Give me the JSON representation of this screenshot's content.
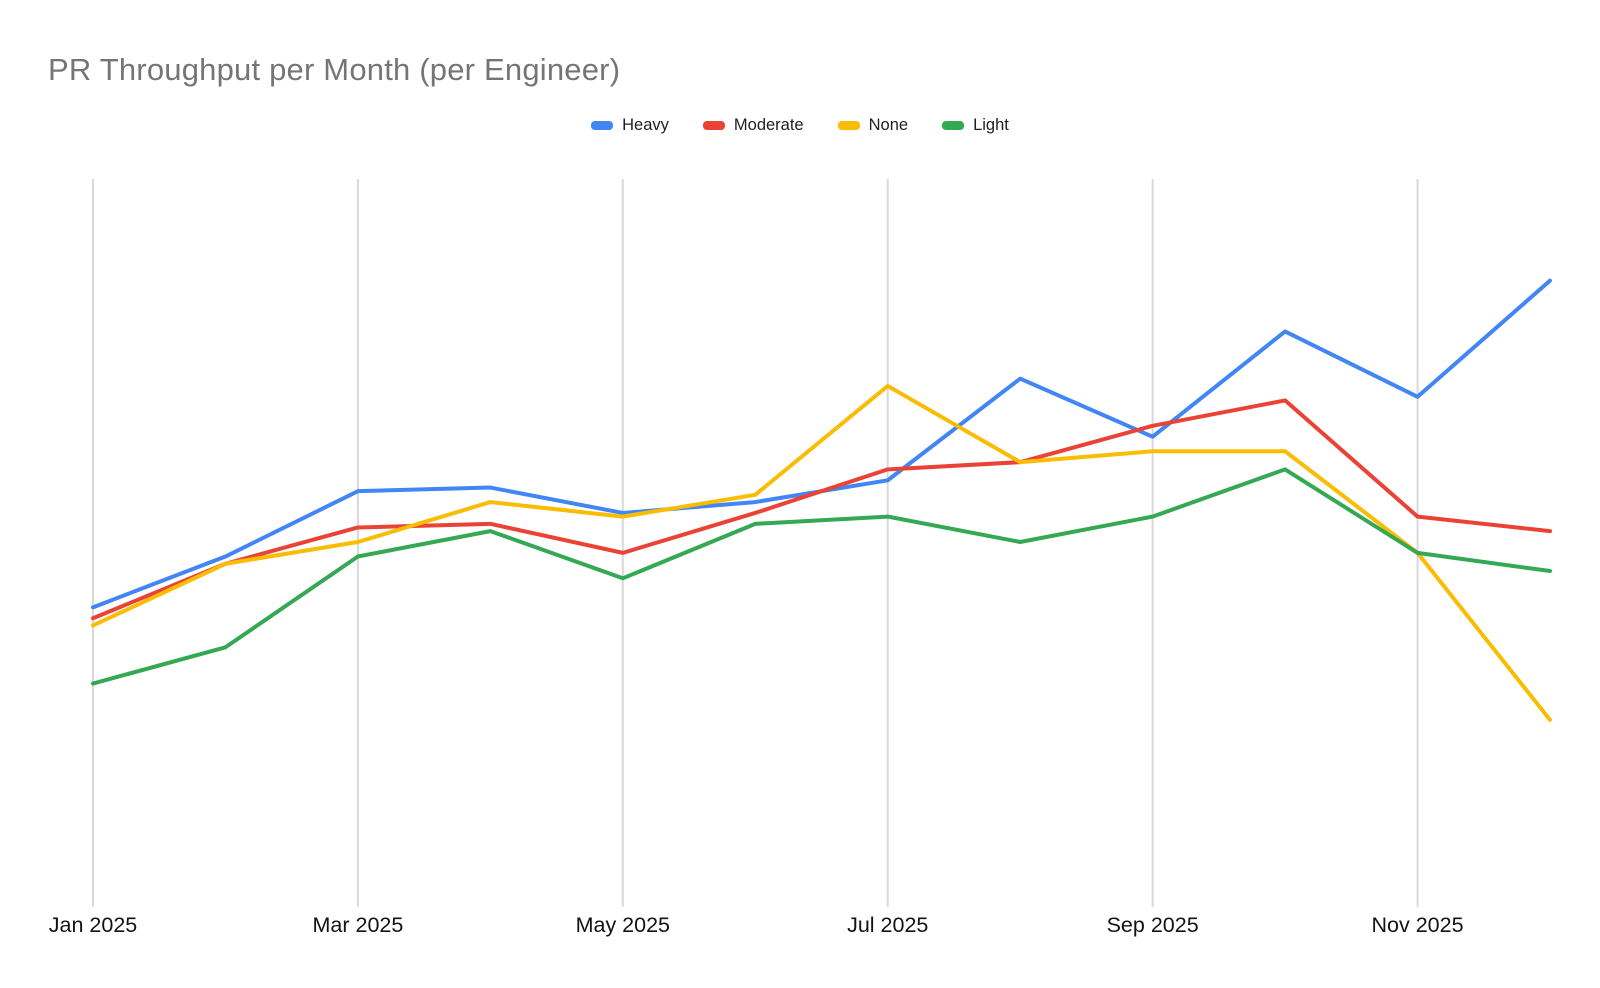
{
  "title": "PR Throughput per Month (per Engineer)",
  "legend": {
    "position": "top-center",
    "items": [
      {
        "label": "Heavy",
        "color": "#4285F4"
      },
      {
        "label": "Moderate",
        "color": "#EA4335"
      },
      {
        "label": "None",
        "color": "#FBBC04"
      },
      {
        "label": "Light",
        "color": "#34A853"
      }
    ]
  },
  "chart_data": {
    "type": "line",
    "title": "PR Throughput per Month (per Engineer)",
    "categories": [
      "Jan 2025",
      "Feb 2025",
      "Mar 2025",
      "Apr 2025",
      "May 2025",
      "Jun 2025",
      "Jul 2025",
      "Aug 2025",
      "Sep 2025",
      "Oct 2025",
      "Nov 2025",
      "Dec 2025"
    ],
    "x_tick_indices": [
      0,
      2,
      4,
      6,
      8,
      10
    ],
    "x_tick_labels_shown": [
      "Jan 2025",
      "Mar 2025",
      "May 2025",
      "Jul 2025",
      "Sep 2025",
      "Nov 2025"
    ],
    "series": [
      {
        "name": "Heavy",
        "color": "#4285F4",
        "values": [
          4.1,
          4.8,
          5.7,
          5.75,
          5.4,
          5.55,
          5.85,
          7.25,
          6.45,
          7.9,
          7.0,
          8.6
        ]
      },
      {
        "name": "Moderate",
        "color": "#EA4335",
        "values": [
          3.95,
          4.7,
          5.2,
          5.25,
          4.85,
          5.4,
          6.0,
          6.1,
          6.6,
          6.95,
          5.35,
          5.15
        ]
      },
      {
        "name": "None",
        "color": "#FBBC04",
        "values": [
          3.85,
          4.7,
          5.0,
          5.55,
          5.35,
          5.65,
          7.15,
          6.1,
          6.25,
          6.25,
          4.85,
          2.55
        ]
      },
      {
        "name": "Light",
        "color": "#34A853",
        "values": [
          3.05,
          3.55,
          4.8,
          5.15,
          4.5,
          5.25,
          5.35,
          5.0,
          5.35,
          6.0,
          4.85,
          4.6
        ]
      }
    ],
    "xlabel": "",
    "ylabel": "",
    "ylim": [
      0,
      10
    ],
    "y_axis_unlabeled": true,
    "y_values_note": "No y-axis ticks, labels or horizontal gridlines are rendered; series values are estimated on a relative 0-10 scale from line positions.",
    "grid": "vertical gridlines at every second month only",
    "legend_position": "top-center",
    "colors": {
      "title_text": "#757575",
      "axis_label_text": "#131313",
      "gridline": "#d9d9d9",
      "background": "#ffffff"
    }
  }
}
